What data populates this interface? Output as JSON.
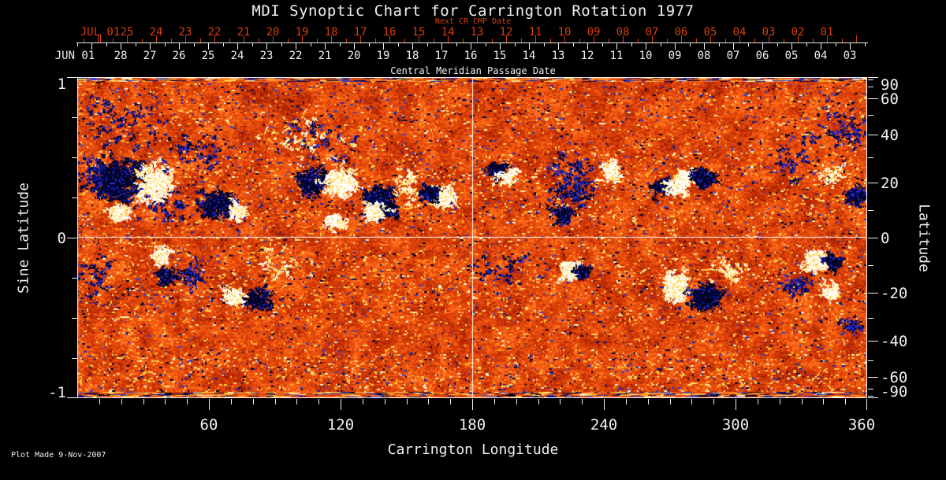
{
  "title": "MDI Synoptic Chart for Carrington Rotation 1977",
  "footer": {
    "plot_made": "Plot Made  9-Nov-2007"
  },
  "colors": {
    "background": "#000000",
    "axis_white": "#f0f0f0",
    "axis_red": "#d2400e"
  },
  "chart_data": {
    "type": "heatmap",
    "title": "MDI Synoptic Chart for Carrington Rotation 1977",
    "description": "MDI magnetogram synoptic map: orange/red quiet Sun noise, black/blue negative polarity regions, white/yellow positive polarity regions",
    "xlabel": "Carrington Longitude",
    "ylabel_left": "Sine Latitude",
    "ylabel_right": "Latitude",
    "x_range": [
      0,
      360
    ],
    "sine_lat_range": [
      -1,
      1
    ],
    "x_ticks_major": [
      60,
      120,
      180,
      240,
      300,
      360
    ],
    "x_minor_step_deg": 10,
    "left_ticks": [
      "1",
      "0",
      "-1"
    ],
    "left_minor_step_sine": 0.25,
    "right_ticks_deg": [
      90,
      60,
      40,
      20,
      0,
      -20,
      -40,
      -60,
      -90
    ],
    "right_minor_ticks_deg": [
      80,
      70,
      50,
      30,
      10,
      -10,
      -30,
      -50,
      -70,
      -80
    ],
    "grid_lines": {
      "horizontal_at_sine_lat": 0,
      "vertical_at_lon": 180
    },
    "top_axis_next_cr": {
      "label": "Next CR CMP Date",
      "month_label": "JUL 01",
      "day_labels": [
        "25",
        "24",
        "23",
        "22",
        "21",
        "20",
        "19",
        "18",
        "17",
        "16",
        "15",
        "14",
        "13",
        "12",
        "11",
        "10",
        "09",
        "08",
        "07",
        "06",
        "05",
        "04",
        "03",
        "02",
        "01"
      ]
    },
    "top_axis_cmp": {
      "label": "Central Meridian Passage Date",
      "month_label": "JUN 01",
      "day_labels": [
        "28",
        "27",
        "26",
        "25",
        "24",
        "23",
        "22",
        "21",
        "20",
        "19",
        "18",
        "17",
        "16",
        "15",
        "14",
        "13",
        "12",
        "11",
        "10",
        "09",
        "08",
        "07",
        "06",
        "05",
        "04",
        "03"
      ]
    },
    "palette": {
      "quiet_ramp": [
        "#991b00",
        "#ad2402",
        "#bd2d04",
        "#cc3606",
        "#d94009",
        "#e54b0c",
        "#f05810",
        "#f96516",
        "#ff741f",
        "#ff852e"
      ],
      "negative": [
        "#000033",
        "#0a1266",
        "#1c2ba8",
        "#2e3dcc",
        "#000015"
      ],
      "positive": [
        "#ffd24d",
        "#ffc23a",
        "#ffe386",
        "#ffaa22",
        "#fff3c4"
      ],
      "neg_core": [
        "#000016",
        "#000a66",
        "#2a2acd"
      ],
      "pos_core": [
        "#ffffff",
        "#fff1bb",
        "#ffd24d"
      ]
    },
    "noise": {
      "seed": 1977,
      "coarse_cell": 14,
      "dark_fraction": 0.03,
      "bright_fraction": 0.045,
      "edge_rows": 6,
      "belts": [
        {
          "sl0": 0.08,
          "sl1": 0.52,
          "bright": 0.03,
          "dark": 0.012
        },
        {
          "sl0": -0.52,
          "sl1": -0.08,
          "bright": 0.028,
          "dark": 0.006
        },
        {
          "sl0": -0.98,
          "sl1": -0.72,
          "bright": 0.05,
          "dark": 0.012
        },
        {
          "sl0": 0.72,
          "sl1": 0.95,
          "bright": 0.0,
          "dark": 0.02
        }
      ]
    },
    "active_regions": [
      {
        "lon": 18.7,
        "sl": 0.36,
        "wd": 30.5,
        "hs": 0.34,
        "pol": "neg",
        "n": 230,
        "df": 0
      },
      {
        "lon": 35.2,
        "sl": 0.34,
        "wd": 19.8,
        "hs": 0.29,
        "pol": "pos",
        "n": 150,
        "df": 0
      },
      {
        "lon": 18.7,
        "sl": 0.16,
        "wd": 10.8,
        "hs": 0.11,
        "pol": "pos",
        "n": 40,
        "df": 0
      },
      {
        "lon": 7.2,
        "sl": 0.36,
        "wd": 14.4,
        "hs": 0.29,
        "pol": "neg",
        "n": 45,
        "df": 1
      },
      {
        "lon": 18.0,
        "sl": 0.71,
        "wd": 43.1,
        "hs": 0.34,
        "pol": "neg",
        "n": 70,
        "df": 1
      },
      {
        "lon": 53.9,
        "sl": 0.53,
        "wd": 32.3,
        "hs": 0.25,
        "pol": "neg",
        "n": 50,
        "df": 1
      },
      {
        "lon": 41.3,
        "sl": 0.19,
        "wd": 32.3,
        "hs": 0.2,
        "pol": "neg",
        "n": 40,
        "df": 1
      },
      {
        "lon": 64.6,
        "sl": 0.2,
        "wd": 23.4,
        "hs": 0.22,
        "pol": "neg",
        "n": 110,
        "df": 0
      },
      {
        "lon": 72.9,
        "sl": 0.17,
        "wd": 7.9,
        "hs": 0.08,
        "pol": "pos",
        "n": 30,
        "df": 0
      },
      {
        "lon": 106.6,
        "sl": 0.35,
        "wd": 17.2,
        "hs": 0.2,
        "pol": "neg",
        "n": 85,
        "df": 0
      },
      {
        "lon": 119.6,
        "sl": 0.34,
        "wd": 18.7,
        "hs": 0.22,
        "pol": "pos",
        "n": 115,
        "df": 0
      },
      {
        "lon": 138.6,
        "sl": 0.22,
        "wd": 17.2,
        "hs": 0.27,
        "pol": "neg",
        "n": 135,
        "df": 0
      },
      {
        "lon": 135.7,
        "sl": 0.16,
        "wd": 10.1,
        "hs": 0.11,
        "pol": "pos",
        "n": 40,
        "df": 0
      },
      {
        "lon": 117.8,
        "sl": 0.1,
        "wd": 9.0,
        "hs": 0.09,
        "pol": "pos",
        "n": 32,
        "df": 0
      },
      {
        "lon": 150.8,
        "sl": 0.31,
        "wd": 12.6,
        "hs": 0.25,
        "pol": "pos",
        "n": 45,
        "df": 1
      },
      {
        "lon": 167.0,
        "sl": 0.25,
        "wd": 11.5,
        "hs": 0.16,
        "pol": "pos",
        "n": 55,
        "df": 0
      },
      {
        "lon": 160.5,
        "sl": 0.28,
        "wd": 7.9,
        "hs": 0.11,
        "pol": "neg",
        "n": 40,
        "df": 0
      },
      {
        "lon": 107.7,
        "sl": 0.61,
        "wd": 46.7,
        "hs": 0.29,
        "pol": "neg",
        "n": 45,
        "df": 1
      },
      {
        "lon": 107.7,
        "sl": 0.6,
        "wd": 46.7,
        "hs": 0.29,
        "pol": "pos",
        "n": 35,
        "df": 1
      },
      {
        "lon": 191.0,
        "sl": 0.42,
        "wd": 8.6,
        "hs": 0.11,
        "pol": "neg",
        "n": 42,
        "df": 0
      },
      {
        "lon": 196.1,
        "sl": 0.38,
        "wd": 7.2,
        "hs": 0.09,
        "pol": "pos",
        "n": 30,
        "df": 0
      },
      {
        "lon": 225.6,
        "sl": 0.34,
        "wd": 21.6,
        "hs": 0.39,
        "pol": "neg",
        "n": 120,
        "df": 1
      },
      {
        "lon": 242.8,
        "sl": 0.4,
        "wd": 8.6,
        "hs": 0.2,
        "pol": "pos",
        "n": 45,
        "df": 0
      },
      {
        "lon": 220.5,
        "sl": 0.14,
        "wd": 10.1,
        "hs": 0.12,
        "pol": "neg",
        "n": 40,
        "df": 0
      },
      {
        "lon": 266.5,
        "sl": 0.32,
        "wd": 7.9,
        "hs": 0.13,
        "pol": "neg",
        "n": 55,
        "df": 0
      },
      {
        "lon": 273.0,
        "sl": 0.32,
        "wd": 9.3,
        "hs": 0.11,
        "pol": "pos",
        "n": 50,
        "df": 0
      },
      {
        "lon": 276.6,
        "sl": 0.38,
        "wd": 5.7,
        "hs": 0.08,
        "pol": "pos",
        "n": 28,
        "df": 0
      },
      {
        "lon": 284.8,
        "sl": 0.37,
        "wd": 10.1,
        "hs": 0.15,
        "pol": "neg",
        "n": 70,
        "df": 0
      },
      {
        "lon": 326.5,
        "sl": 0.47,
        "wd": 18.0,
        "hs": 0.25,
        "pol": "neg",
        "n": 30,
        "df": 1
      },
      {
        "lon": 347.7,
        "sl": 0.69,
        "wd": 39.5,
        "hs": 0.34,
        "pol": "neg",
        "n": 60,
        "df": 1
      },
      {
        "lon": 343.7,
        "sl": 0.38,
        "wd": 11.5,
        "hs": 0.15,
        "pol": "pos",
        "n": 35,
        "df": 1
      },
      {
        "lon": 354.9,
        "sl": 0.25,
        "wd": 9.3,
        "hs": 0.11,
        "pol": "neg",
        "n": 45,
        "df": 0
      },
      {
        "lon": 38.1,
        "sl": -0.11,
        "wd": 9.3,
        "hs": 0.12,
        "pol": "pos",
        "n": 50,
        "df": 0
      },
      {
        "lon": 40.6,
        "sl": -0.24,
        "wd": 7.2,
        "hs": 0.09,
        "pol": "neg",
        "n": 35,
        "df": 0
      },
      {
        "lon": 51.4,
        "sl": -0.23,
        "wd": 12.2,
        "hs": 0.15,
        "pol": "neg",
        "n": 40,
        "df": 1
      },
      {
        "lon": 71.5,
        "sl": -0.38,
        "wd": 9.3,
        "hs": 0.13,
        "pol": "pos",
        "n": 55,
        "df": 0
      },
      {
        "lon": 82.3,
        "sl": -0.38,
        "wd": 11.5,
        "hs": 0.14,
        "pol": "neg",
        "n": 60,
        "df": 0
      },
      {
        "lon": 93.4,
        "sl": -0.17,
        "wd": 28.7,
        "hs": 0.2,
        "pol": "pos",
        "n": 28,
        "df": 1
      },
      {
        "lon": 224.6,
        "sl": -0.2,
        "wd": 10.1,
        "hs": 0.13,
        "pol": "pos",
        "n": 55,
        "df": 0
      },
      {
        "lon": 230.3,
        "sl": -0.21,
        "wd": 5.7,
        "hs": 0.07,
        "pol": "neg",
        "n": 25,
        "df": 0
      },
      {
        "lon": 272.7,
        "sl": -0.3,
        "wd": 12.9,
        "hs": 0.21,
        "pol": "pos",
        "n": 115,
        "df": 0
      },
      {
        "lon": 286.3,
        "sl": -0.37,
        "wd": 15.8,
        "hs": 0.18,
        "pol": "neg",
        "n": 125,
        "df": 0
      },
      {
        "lon": 296.7,
        "sl": -0.21,
        "wd": 17.2,
        "hs": 0.12,
        "pol": "pos",
        "n": 38,
        "df": 1
      },
      {
        "lon": 337.0,
        "sl": -0.14,
        "wd": 10.1,
        "hs": 0.15,
        "pol": "pos",
        "n": 60,
        "df": 0
      },
      {
        "lon": 344.5,
        "sl": -0.15,
        "wd": 7.2,
        "hs": 0.1,
        "pol": "neg",
        "n": 40,
        "df": 0
      },
      {
        "lon": 328.3,
        "sl": -0.29,
        "wd": 13.7,
        "hs": 0.15,
        "pol": "neg",
        "n": 38,
        "df": 1
      },
      {
        "lon": 343.4,
        "sl": -0.34,
        "wd": 7.9,
        "hs": 0.1,
        "pol": "pos",
        "n": 32,
        "df": 0
      },
      {
        "lon": 352.8,
        "sl": -0.55,
        "wd": 12.9,
        "hs": 0.08,
        "pol": "neg",
        "n": 30,
        "df": 1
      },
      {
        "lon": 194.7,
        "sl": -0.22,
        "wd": 28.7,
        "hs": 0.29,
        "pol": "neg",
        "n": 38,
        "df": 1
      },
      {
        "lon": 9.0,
        "sl": -0.23,
        "wd": 18.0,
        "hs": 0.34,
        "pol": "neg",
        "n": 32,
        "df": 1
      }
    ]
  }
}
